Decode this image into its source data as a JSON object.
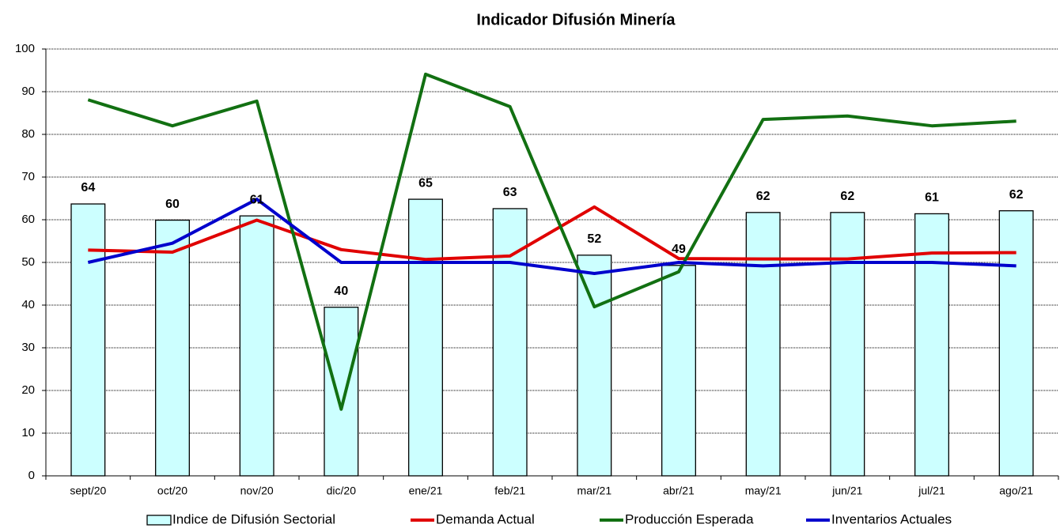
{
  "chart_data": {
    "type": "combo",
    "title": "Indicador Difusión Minería",
    "categories": [
      "sept/20",
      "oct/20",
      "nov/20",
      "dic/20",
      "ene/21",
      "feb/21",
      "mar/21",
      "abr/21",
      "may/21",
      "jun/21",
      "jul/21",
      "ago/21"
    ],
    "series": [
      {
        "name": "Indice de Difusión Sectorial",
        "type": "bar",
        "color": "#ccffff",
        "values": [
          63.7,
          59.9,
          60.9,
          39.5,
          64.8,
          62.6,
          51.7,
          49.3,
          61.7,
          61.7,
          61.4,
          62.1
        ],
        "value_labels": [
          "64",
          "60",
          "61",
          "40",
          "65",
          "63",
          "52",
          "49",
          "62",
          "62",
          "61",
          "62"
        ]
      },
      {
        "name": "Demanda Actual",
        "type": "line",
        "color": "#e00000",
        "values": [
          52.9,
          52.4,
          59.9,
          53.0,
          50.7,
          51.5,
          63.0,
          50.9,
          50.8,
          50.8,
          52.2,
          52.3
        ]
      },
      {
        "name": "Producción Esperada",
        "type": "line",
        "color": "#127012",
        "values": [
          88.1,
          82.0,
          87.8,
          15.6,
          94.1,
          86.5,
          39.6,
          47.8,
          83.5,
          84.3,
          82.0,
          83.1
        ]
      },
      {
        "name": "Inventarios Actuales",
        "type": "line",
        "color": "#0000cc",
        "values": [
          50.0,
          54.5,
          64.8,
          50.0,
          50.0,
          50.0,
          47.4,
          50.0,
          49.2,
          50.0,
          50.0,
          49.2
        ]
      }
    ],
    "ylim": [
      0,
      100
    ],
    "yticks": [
      0,
      10,
      20,
      30,
      40,
      50,
      60,
      70,
      80,
      90,
      100
    ],
    "grid": true,
    "legend": "bottom"
  }
}
